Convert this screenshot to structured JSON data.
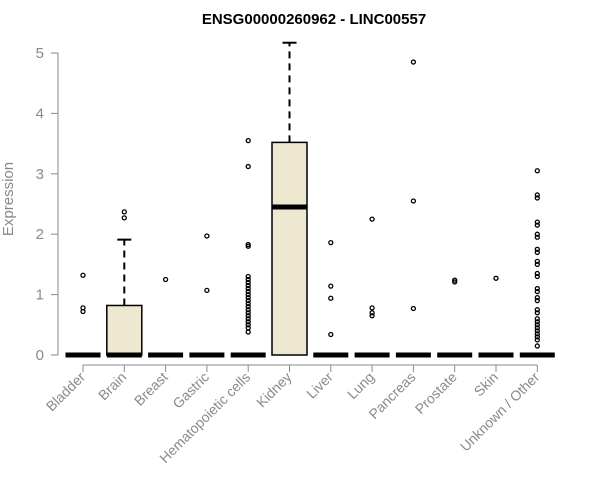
{
  "chart_data": {
    "type": "box",
    "title": "ENSG00000260962 - LINC00557",
    "ylabel": "Expression",
    "xlabel": "",
    "ylim": [
      0,
      5
    ],
    "yticks": [
      0,
      1,
      2,
      3,
      4,
      5
    ],
    "box_fill": "#efe8d0",
    "categories": [
      "Bladder",
      "Brain",
      "Breast",
      "Gastric",
      "Hematopoietic cells",
      "Kidney",
      "Liver",
      "Lung",
      "Pancreas",
      "Prostate",
      "Skin",
      "Unknown / Other"
    ],
    "boxes": [
      {
        "category": "Bladder",
        "q1": 0,
        "median": 0,
        "q3": 0,
        "whisker_low": 0,
        "whisker_high": 0,
        "outliers": [
          1.32,
          0.78,
          0.72
        ]
      },
      {
        "category": "Brain",
        "q1": 0,
        "median": 0,
        "q3": 0.82,
        "whisker_low": 0,
        "whisker_high": 1.91,
        "outliers": [
          2.37,
          2.27
        ]
      },
      {
        "category": "Breast",
        "q1": 0,
        "median": 0,
        "q3": 0,
        "whisker_low": 0,
        "whisker_high": 0,
        "outliers": [
          1.25
        ]
      },
      {
        "category": "Gastric",
        "q1": 0,
        "median": 0,
        "q3": 0,
        "whisker_low": 0,
        "whisker_high": 0,
        "outliers": [
          1.97,
          1.07
        ]
      },
      {
        "category": "Hematopoietic cells",
        "q1": 0,
        "median": 0,
        "q3": 0,
        "whisker_low": 0,
        "whisker_high": 0,
        "outliers": [
          3.55,
          3.12,
          1.83,
          1.8,
          1.3,
          1.25,
          1.2,
          1.15,
          1.1,
          1.05,
          1.0,
          0.95,
          0.9,
          0.85,
          0.8,
          0.75,
          0.7,
          0.65,
          0.6,
          0.55,
          0.5,
          0.45,
          0.38
        ]
      },
      {
        "category": "Kidney",
        "q1": 0,
        "median": 2.45,
        "q3": 3.52,
        "whisker_low": 0,
        "whisker_high": 5.17,
        "outliers": []
      },
      {
        "category": "Liver",
        "q1": 0,
        "median": 0,
        "q3": 0,
        "whisker_low": 0,
        "whisker_high": 0,
        "outliers": [
          1.86,
          1.14,
          0.94,
          0.34
        ]
      },
      {
        "category": "Lung",
        "q1": 0,
        "median": 0,
        "q3": 0,
        "whisker_low": 0,
        "whisker_high": 0,
        "outliers": [
          2.25,
          0.78,
          0.7,
          0.65
        ]
      },
      {
        "category": "Pancreas",
        "q1": 0,
        "median": 0,
        "q3": 0,
        "whisker_low": 0,
        "whisker_high": 0,
        "outliers": [
          4.85,
          2.55,
          0.77
        ]
      },
      {
        "category": "Prostate",
        "q1": 0,
        "median": 0,
        "q3": 0,
        "whisker_low": 0,
        "whisker_high": 0,
        "outliers": [
          1.24,
          1.21
        ]
      },
      {
        "category": "Skin",
        "q1": 0,
        "median": 0,
        "q3": 0,
        "whisker_low": 0,
        "whisker_high": 0,
        "outliers": [
          1.27
        ]
      },
      {
        "category": "Unknown / Other",
        "q1": 0,
        "median": 0,
        "q3": 0,
        "whisker_low": 0,
        "whisker_high": 0,
        "outliers": [
          3.05,
          2.65,
          2.6,
          2.2,
          2.15,
          2.0,
          1.95,
          1.75,
          1.7,
          1.55,
          1.5,
          1.35,
          1.3,
          1.1,
          1.05,
          0.95,
          0.9,
          0.75,
          0.7,
          0.6,
          0.55,
          0.5,
          0.45,
          0.4,
          0.35,
          0.3,
          0.25,
          0.15
        ]
      }
    ],
    "grid": false,
    "legend": "none"
  }
}
